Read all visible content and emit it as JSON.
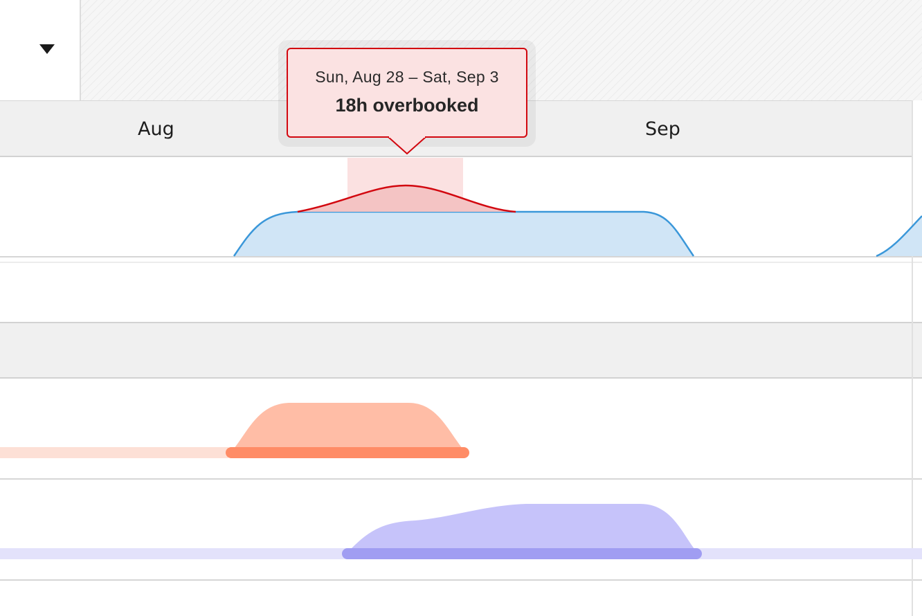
{
  "timeline": {
    "months": [
      "Aug",
      "Sep"
    ]
  },
  "tooltip": {
    "range": "Sun, Aug 28 – Sat, Sep 3",
    "status": "18h overbooked"
  },
  "colors": {
    "overbooked_line": "#d2070f",
    "overbooked_fill": "#f4c4c4",
    "capacity_line": "#3a97d9",
    "capacity_fill": "#d0e5f6",
    "orange_bar": "#ff8c66",
    "orange_fill": "#ffbda6",
    "purple_bar": "#a09df2",
    "purple_fill": "#c6c3fa"
  },
  "icons": {
    "dropdown": "triangle-down"
  }
}
